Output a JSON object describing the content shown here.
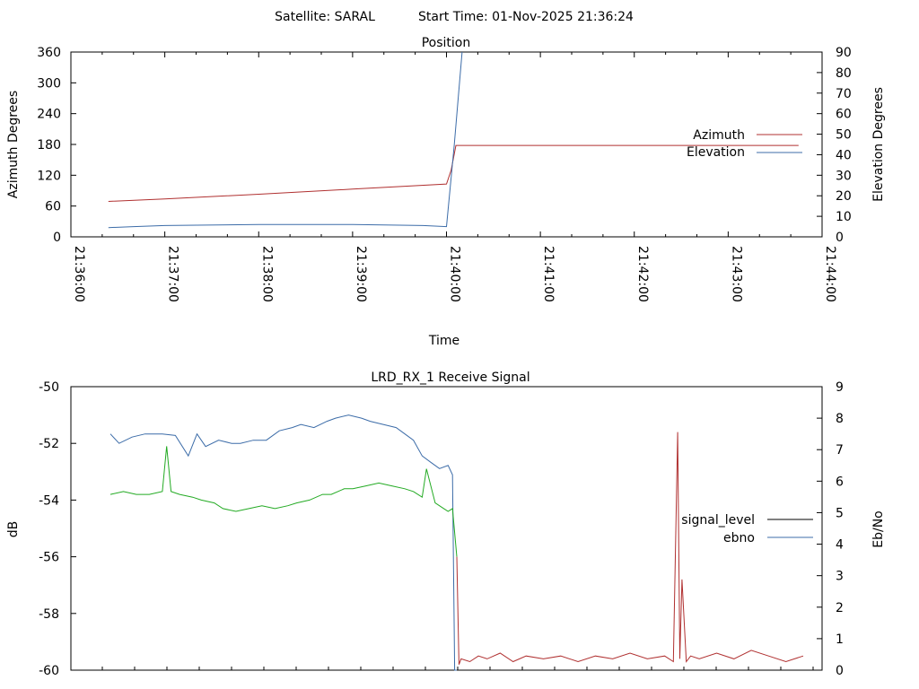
{
  "header": {
    "satellite": "Satellite: SARAL",
    "start_time": "Start Time: 01-Nov-2025 21:36:24"
  },
  "chart_data": [
    {
      "type": "line",
      "title": "Position",
      "xlabel": "Time",
      "ylabel": "Azimuth Degrees",
      "y2label": "Elevation Degrees",
      "x_ticks": [
        "21:36:00",
        "21:37:00",
        "21:38:00",
        "21:39:00",
        "21:40:00",
        "21:41:00",
        "21:42:00",
        "21:43:00",
        "21:44:00"
      ],
      "y_ticks": [
        "0",
        "60",
        "120",
        "180",
        "240",
        "300",
        "360"
      ],
      "y2_ticks": [
        "0",
        "10",
        "20",
        "30",
        "40",
        "50",
        "60",
        "70",
        "80",
        "90"
      ],
      "ylim": [
        0,
        360
      ],
      "y2lim": [
        0,
        90
      ],
      "legend_position": "right",
      "series": [
        {
          "name": "Azimuth",
          "color": "#b03030",
          "axis": "y",
          "x": [
            "21:36:24",
            "21:37:00",
            "21:38:00",
            "21:39:00",
            "21:40:00",
            "21:40:03",
            "21:40:06",
            "21:41:00",
            "21:42:00",
            "21:43:00",
            "21:43:45"
          ],
          "y": [
            69,
            74,
            83,
            93,
            103,
            130,
            178,
            178,
            178,
            178,
            178
          ]
        },
        {
          "name": "Elevation",
          "color": "#3c6ca8",
          "axis": "y2",
          "x": [
            "21:36:24",
            "21:36:40",
            "21:37:00",
            "21:38:00",
            "21:39:00",
            "21:39:45",
            "21:40:00",
            "21:40:05",
            "21:40:10"
          ],
          "y": [
            4.5,
            5.0,
            5.5,
            6.0,
            6.0,
            5.5,
            5.0,
            45,
            90
          ]
        }
      ]
    },
    {
      "type": "line",
      "title": "LRD_RX_1 Receive Signal",
      "ylabel": "dB",
      "y2label": "Eb/No",
      "y_ticks": [
        "-50",
        "-52",
        "-54",
        "-56",
        "-58",
        "-60"
      ],
      "y2_ticks": [
        "0",
        "1",
        "2",
        "3",
        "4",
        "5",
        "6",
        "7",
        "8",
        "9"
      ],
      "ylim": [
        -60,
        -50
      ],
      "y2lim": [
        0,
        9
      ],
      "legend_position": "right",
      "series": [
        {
          "name": "signal_level",
          "color": "#000000",
          "axis": "y",
          "x": [],
          "y": []
        },
        {
          "name": "ebno",
          "color": "#3c6ca8",
          "axis": "y2",
          "x": [
            0.0,
            0.02,
            0.05,
            0.08,
            0.12,
            0.15,
            0.18,
            0.2,
            0.22,
            0.25,
            0.28,
            0.3,
            0.33,
            0.36,
            0.39,
            0.42,
            0.44,
            0.47,
            0.5,
            0.52,
            0.55,
            0.58,
            0.6,
            0.63,
            0.66,
            0.68,
            0.7,
            0.72,
            0.74,
            0.76,
            0.78,
            0.79,
            0.795,
            0.8
          ],
          "y": [
            7.5,
            7.2,
            7.4,
            7.5,
            7.5,
            7.45,
            6.8,
            7.5,
            7.1,
            7.3,
            7.2,
            7.2,
            7.3,
            7.3,
            7.6,
            7.7,
            7.8,
            7.7,
            7.9,
            8.0,
            8.1,
            8.0,
            7.9,
            7.8,
            7.7,
            7.5,
            7.3,
            6.8,
            6.6,
            6.4,
            6.5,
            6.2,
            0.0,
            0.0
          ]
        },
        {
          "name": "",
          "color": "#22aa22",
          "axis": "y",
          "x": [
            0.0,
            0.03,
            0.06,
            0.09,
            0.12,
            0.13,
            0.14,
            0.16,
            0.19,
            0.21,
            0.24,
            0.26,
            0.29,
            0.32,
            0.35,
            0.38,
            0.41,
            0.43,
            0.46,
            0.49,
            0.51,
            0.54,
            0.56,
            0.59,
            0.62,
            0.65,
            0.68,
            0.7,
            0.72,
            0.73,
            0.75,
            0.77,
            0.78,
            0.79,
            0.8
          ],
          "y": [
            -53.8,
            -53.7,
            -53.8,
            -53.8,
            -53.7,
            -52.1,
            -53.7,
            -53.8,
            -53.9,
            -54.0,
            -54.1,
            -54.3,
            -54.4,
            -54.3,
            -54.2,
            -54.3,
            -54.2,
            -54.1,
            -54.0,
            -53.8,
            -53.8,
            -53.6,
            -53.6,
            -53.5,
            -53.4,
            -53.5,
            -53.6,
            -53.7,
            -53.9,
            -52.9,
            -54.1,
            -54.3,
            -54.4,
            -54.3,
            -56.0
          ]
        },
        {
          "name": "",
          "color": "#b03030",
          "axis": "y",
          "x": [
            0.8,
            0.805,
            0.81,
            0.83,
            0.85,
            0.87,
            0.9,
            0.93,
            0.96,
            1.0,
            1.04,
            1.08,
            1.12,
            1.16,
            1.2,
            1.24,
            1.28,
            1.3,
            1.31,
            1.315,
            1.32,
            1.33,
            1.34,
            1.36,
            1.4,
            1.44,
            1.48,
            1.52,
            1.56,
            1.6
          ],
          "y": [
            -56.0,
            -59.8,
            -59.6,
            -59.7,
            -59.5,
            -59.6,
            -59.4,
            -59.7,
            -59.5,
            -59.6,
            -59.5,
            -59.7,
            -59.5,
            -59.6,
            -59.4,
            -59.6,
            -59.5,
            -59.7,
            -51.6,
            -59.6,
            -56.8,
            -59.7,
            -59.5,
            -59.6,
            -59.4,
            -59.6,
            -59.3,
            -59.5,
            -59.7,
            -59.5
          ]
        }
      ]
    }
  ]
}
